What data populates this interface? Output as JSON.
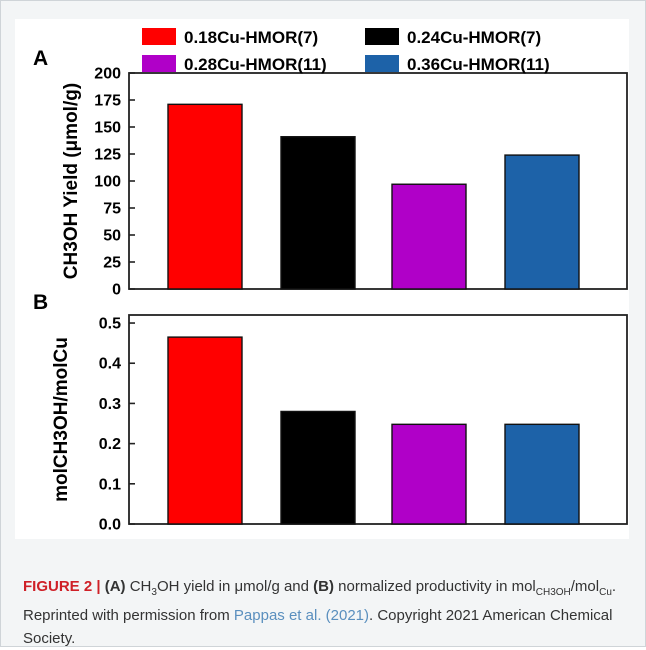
{
  "chart_data": [
    {
      "type": "bar",
      "panel_label": "A",
      "categories": [
        "0.18Cu-HMOR(7)",
        "0.24Cu-HMOR(7)",
        "0.28Cu-HMOR(11)",
        "0.36Cu-HMOR(11)"
      ],
      "values": [
        171,
        141,
        97,
        124
      ],
      "colors": [
        "#ff0000",
        "#000000",
        "#b000c8",
        "#1d62a8"
      ],
      "ylabel": "CH3OH Yield (μmol/g)",
      "ylim": [
        0,
        200
      ],
      "yticks": [
        "0",
        "25",
        "50",
        "75",
        "100",
        "125",
        "150",
        "175",
        "200"
      ],
      "legend": {
        "placement": "top",
        "entries": [
          {
            "label": "0.18Cu-HMOR(7)",
            "color": "#ff0000"
          },
          {
            "label": "0.24Cu-HMOR(7)",
            "color": "#000000"
          },
          {
            "label": "0.28Cu-HMOR(11)",
            "color": "#b000c8"
          },
          {
            "label": "0.36Cu-HMOR(11)",
            "color": "#1d62a8"
          }
        ]
      },
      "grid": false
    },
    {
      "type": "bar",
      "panel_label": "B",
      "categories": [
        "0.18Cu-HMOR(7)",
        "0.24Cu-HMOR(7)",
        "0.28Cu-HMOR(11)",
        "0.36Cu-HMOR(11)"
      ],
      "values": [
        0.465,
        0.28,
        0.248,
        0.248
      ],
      "colors": [
        "#ff0000",
        "#000000",
        "#b000c8",
        "#1d62a8"
      ],
      "ylabel": "molCH3OH/molCu",
      "ylim": [
        0,
        0.52
      ],
      "yticks": [
        "0.0",
        "0.1",
        "0.2",
        "0.3",
        "0.4",
        "0.5"
      ],
      "grid": false
    }
  ],
  "caption": {
    "figure_label": "FIGURE 2 |",
    "part_a": "(A)",
    "text_a_pre": " CH",
    "text_a_sub": "3",
    "text_a_post": "OH yield in μmol/g and ",
    "part_b": "(B)",
    "text_b_pre": " normalized productivity in mol",
    "text_b_sub1": "CH3OH",
    "text_b_mid": "/mol",
    "text_b_sub2": "Cu",
    "text_b_post": ". Reprinted with permission from ",
    "citation": "Pappas et al. (2021)",
    "text_end": ". Copyright 2021 American Chemical Society."
  }
}
